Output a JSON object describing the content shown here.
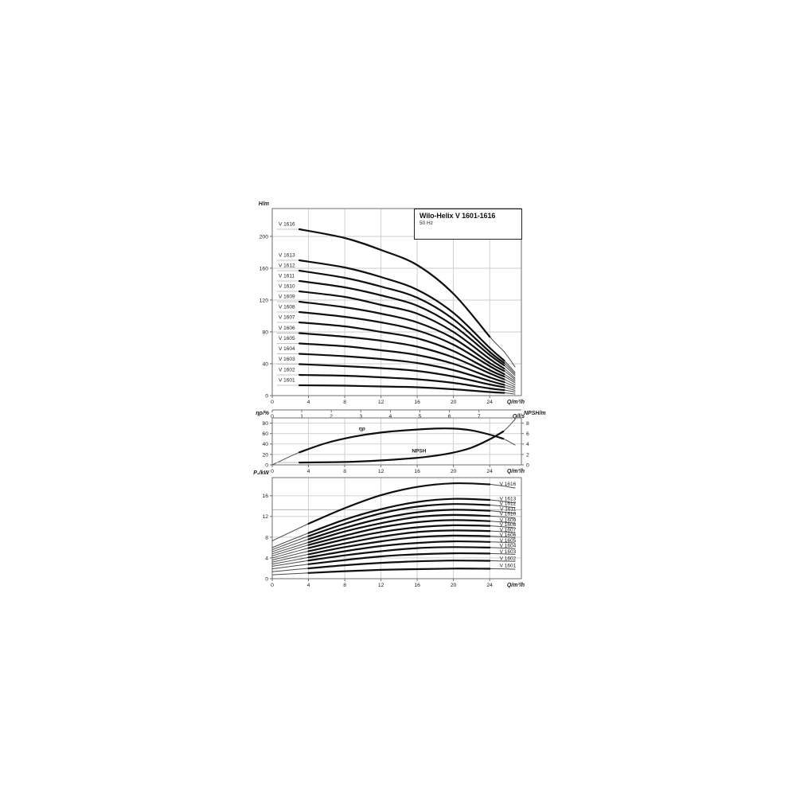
{
  "title_box": {
    "title": "Wilo-Helix V 1601-1616",
    "subtitle": "50 Hz"
  },
  "colors": {
    "curve": "#0f0f0f",
    "curve_thin": "#4a4a4a",
    "lead": "#c4c4c4",
    "grid": "#cbcbcb",
    "frame": "#6e6e6e",
    "ref_line": "#b4b4b4",
    "text": "#1a1a1a"
  },
  "chart_data": [
    {
      "id": "head-chart",
      "type": "line",
      "title": "Wilo-Helix V 1601-1616, 50 Hz",
      "xlabel": "Q/m³/h",
      "ylabel": "H/m",
      "xlim": [
        0,
        27.5
      ],
      "ylim": [
        0,
        235
      ],
      "x_ticks": [
        0,
        4,
        8,
        12,
        16,
        20,
        24
      ],
      "y_ticks": [
        0,
        40,
        80,
        120,
        160,
        200
      ],
      "grid": true,
      "x2": {
        "label": "Q/l/s",
        "ticks": [
          0,
          1,
          2,
          3,
          4,
          5,
          6,
          7
        ],
        "m3h_per_unit": 3.26
      },
      "x": [
        3,
        8,
        12,
        16,
        20,
        24,
        25.6,
        26.8
      ],
      "series": [
        {
          "name": "V 1616",
          "y": [
            209,
            198,
            183,
            164,
            128,
            74,
            55,
            36
          ],
          "axis": "y",
          "thick": [
            3,
            24
          ],
          "lead": 0.5
        },
        {
          "name": "V 1613",
          "y": [
            170,
            161,
            149,
            133,
            104,
            60,
            44,
            29
          ],
          "axis": "y",
          "thick": [
            3,
            25.6
          ],
          "lead": 0.5
        },
        {
          "name": "V 1612",
          "y": [
            157,
            148,
            137,
            123,
            96,
            55,
            41,
            27
          ],
          "axis": "y",
          "thick": [
            3,
            25.6
          ],
          "lead": 0.5
        },
        {
          "name": "V 1611",
          "y": [
            144,
            136,
            126,
            113,
            88,
            51,
            38,
            25
          ],
          "axis": "y",
          "thick": [
            3,
            25.6
          ],
          "lead": 0.5
        },
        {
          "name": "V 1610",
          "y": [
            131,
            124,
            114,
            103,
            80,
            46,
            34,
            22
          ],
          "axis": "y",
          "thick": [
            3,
            25.6
          ],
          "lead": 0.5
        },
        {
          "name": "V 1609",
          "y": [
            118,
            111,
            103,
            92,
            72,
            41,
            31,
            20
          ],
          "axis": "y",
          "thick": [
            3,
            25.6
          ],
          "lead": 0.5
        },
        {
          "name": "V 1608",
          "y": [
            105,
            99,
            92,
            82,
            64,
            37,
            27,
            18
          ],
          "axis": "y",
          "thick": [
            3,
            25.6
          ],
          "lead": 0.5
        },
        {
          "name": "V 1607",
          "y": [
            92,
            87,
            80,
            72,
            56,
            32,
            24,
            16
          ],
          "axis": "y",
          "thick": [
            3,
            25.6
          ],
          "lead": 0.5
        },
        {
          "name": "V 1606",
          "y": [
            78.5,
            74,
            69,
            61.5,
            48,
            28,
            20.5,
            13.5
          ],
          "axis": "y",
          "thick": [
            3,
            25.6
          ],
          "lead": 0.5
        },
        {
          "name": "V 1605",
          "y": [
            65.5,
            62,
            57,
            51,
            40,
            23,
            17,
            11
          ],
          "axis": "y",
          "thick": [
            3,
            25.6
          ],
          "lead": 0.5
        },
        {
          "name": "V 1604",
          "y": [
            52.5,
            49.5,
            46,
            41,
            32,
            18.5,
            13.5,
            9
          ],
          "axis": "y",
          "thick": [
            3,
            25.6
          ],
          "lead": 0.5
        },
        {
          "name": "V 1603",
          "y": [
            39.5,
            37,
            34.5,
            31,
            24,
            14,
            10.5,
            6.5
          ],
          "axis": "y",
          "thick": [
            3,
            25.6
          ],
          "lead": 0.5
        },
        {
          "name": "V 1602",
          "y": [
            26,
            25,
            23,
            20.5,
            16,
            9,
            7,
            4.5
          ],
          "axis": "y",
          "thick": [
            3,
            25.6
          ],
          "lead": 0.5
        },
        {
          "name": "V 1601",
          "y": [
            13,
            12.5,
            11.5,
            10.5,
            8,
            4.5,
            3.5,
            2
          ],
          "axis": "y",
          "thick": [
            3,
            25.6
          ],
          "lead": 0.5
        }
      ],
      "annotations": [
        {
          "text": "V 1616",
          "q": 0.7,
          "v": 213.5,
          "anchor": "start"
        },
        {
          "text": "V 1613",
          "q": 0.7,
          "v": 174.5,
          "anchor": "start"
        },
        {
          "text": "V 1612",
          "q": 0.7,
          "v": 161.5,
          "anchor": "start"
        },
        {
          "text": "V 1611",
          "q": 0.7,
          "v": 148.5,
          "anchor": "start"
        },
        {
          "text": "V 1610",
          "q": 0.7,
          "v": 135.5,
          "anchor": "start"
        },
        {
          "text": "V 1609",
          "q": 0.7,
          "v": 122.5,
          "anchor": "start"
        },
        {
          "text": "V 1608",
          "q": 0.7,
          "v": 109.5,
          "anchor": "start"
        },
        {
          "text": "V 1607",
          "q": 0.7,
          "v": 96.5,
          "anchor": "start"
        },
        {
          "text": "V 1606",
          "q": 0.7,
          "v": 83,
          "anchor": "start"
        },
        {
          "text": "V 1605",
          "q": 0.7,
          "v": 70,
          "anchor": "start"
        },
        {
          "text": "V 1604",
          "q": 0.7,
          "v": 57,
          "anchor": "start"
        },
        {
          "text": "V 1603",
          "q": 0.7,
          "v": 44,
          "anchor": "start"
        },
        {
          "text": "V 1602",
          "q": 0.7,
          "v": 30.5,
          "anchor": "start"
        },
        {
          "text": "V 1601",
          "q": 0.7,
          "v": 17.5,
          "anchor": "start"
        }
      ]
    },
    {
      "id": "efficiency-npsh-chart",
      "type": "line",
      "xlabel": "Q/m³/h",
      "ylabel": "ηp/%",
      "y2label": "NPSH/m",
      "xlim": [
        0,
        27.5
      ],
      "ylim": [
        0,
        90
      ],
      "y2lim": [
        0,
        9
      ],
      "x_ticks": [
        0,
        4,
        8,
        12,
        16,
        20,
        24
      ],
      "y_ticks": [
        0,
        20,
        40,
        60,
        80
      ],
      "y2_ticks": [
        0,
        2,
        4,
        6,
        8
      ],
      "grid": true,
      "series": [
        {
          "name": "ηp",
          "x": [
            0,
            3,
            6,
            9,
            12,
            15,
            18,
            20,
            22,
            24,
            25.5,
            26.8
          ],
          "y": [
            0,
            24,
            42,
            54,
            62,
            66.5,
            69.5,
            69.5,
            66,
            58,
            50,
            38
          ],
          "axis": "y",
          "thick": [
            3,
            25.5
          ],
          "lead": null
        },
        {
          "name": "NPSH",
          "x": [
            3,
            8,
            12,
            16,
            18,
            20,
            22,
            24,
            25.5,
            26.8
          ],
          "y": [
            0.45,
            0.55,
            0.85,
            1.35,
            1.75,
            2.35,
            3.3,
            4.9,
            6.4,
            8.7
          ],
          "axis": "y2",
          "thick": [
            3,
            25.5
          ],
          "lead": 0.5
        }
      ],
      "annotations": [
        {
          "text": "ηp",
          "q": 9.9,
          "v": 66,
          "axis": "y",
          "anchor": "middle",
          "bold": true,
          "italic": true
        },
        {
          "text": "NPSH",
          "q": 16.2,
          "v": 2.35,
          "axis": "y2",
          "anchor": "middle",
          "bold": true
        }
      ]
    },
    {
      "id": "power-chart",
      "type": "line",
      "xlabel": "Q/m³/h",
      "ylabel": "P₂/kW",
      "xlim": [
        0,
        27.5
      ],
      "ylim": [
        0,
        19.5
      ],
      "x_ticks": [
        0,
        4,
        8,
        12,
        16,
        20,
        24
      ],
      "y_ticks": [
        0,
        4,
        8,
        12,
        16
      ],
      "grid": true,
      "ref_lines": [
        13.3
      ],
      "x": [
        0,
        4,
        8,
        12,
        16,
        20,
        24,
        26.8
      ],
      "series": [
        {
          "name": "V 1616",
          "y": [
            7.3,
            10.6,
            13.6,
            16.1,
            17.7,
            18.4,
            18.2,
            17.5
          ],
          "axis": "y",
          "thick": [
            4,
            24
          ],
          "lead": null
        },
        {
          "name": "V 1613",
          "y": [
            6.0,
            8.8,
            11.4,
            13.4,
            14.8,
            15.4,
            15.2,
            14.6
          ],
          "axis": "y",
          "thick": [
            4,
            24
          ],
          "lead": null
        },
        {
          "name": "V 1612",
          "y": [
            5.6,
            8.2,
            10.6,
            12.6,
            13.9,
            14.4,
            14.2,
            13.7
          ],
          "axis": "y",
          "thick": [
            4,
            24
          ],
          "lead": null
        },
        {
          "name": "V 1611",
          "y": [
            5.2,
            7.6,
            9.8,
            11.6,
            12.8,
            13.3,
            13.1,
            12.6
          ],
          "axis": "y",
          "thick": [
            4,
            24
          ],
          "lead": null
        },
        {
          "name": "V 1610",
          "y": [
            4.8,
            7.0,
            9.1,
            10.7,
            11.9,
            12.3,
            12.1,
            11.7
          ],
          "axis": "y",
          "thick": [
            4,
            24
          ],
          "lead": null
        },
        {
          "name": "V 1609",
          "y": [
            4.4,
            6.5,
            8.3,
            9.9,
            10.9,
            11.3,
            11.1,
            10.7
          ],
          "axis": "y",
          "thick": [
            4,
            24
          ],
          "lead": null
        },
        {
          "name": "V 1608",
          "y": [
            4.0,
            5.9,
            7.6,
            9.0,
            9.9,
            10.3,
            10.2,
            9.8
          ],
          "axis": "y",
          "thick": [
            4,
            24
          ],
          "lead": null
        },
        {
          "name": "V 1607",
          "y": [
            3.6,
            5.3,
            6.8,
            8.1,
            9.0,
            9.3,
            9.2,
            8.9
          ],
          "axis": "y",
          "thick": [
            4,
            24
          ],
          "lead": null
        },
        {
          "name": "V 1606",
          "y": [
            3.2,
            4.7,
            6.1,
            7.2,
            8.0,
            8.3,
            8.2,
            7.9
          ],
          "axis": "y",
          "thick": [
            4,
            24
          ],
          "lead": null
        },
        {
          "name": "V 1605",
          "y": [
            2.8,
            4.1,
            5.3,
            6.3,
            6.9,
            7.2,
            7.1,
            6.9
          ],
          "axis": "y",
          "thick": [
            4,
            24
          ],
          "lead": null
        },
        {
          "name": "V 1604",
          "y": [
            2.4,
            3.5,
            4.5,
            5.3,
            5.9,
            6.1,
            6.0,
            5.8
          ],
          "axis": "y",
          "thick": [
            4,
            24
          ],
          "lead": null
        },
        {
          "name": "V 1603",
          "y": [
            1.9,
            2.8,
            3.6,
            4.3,
            4.7,
            4.9,
            4.85,
            4.7
          ],
          "axis": "y",
          "thick": [
            4,
            24
          ],
          "lead": null
        },
        {
          "name": "V 1602",
          "y": [
            1.35,
            2.0,
            2.6,
            3.05,
            3.35,
            3.5,
            3.45,
            3.35
          ],
          "axis": "y",
          "thick": [
            4,
            24
          ],
          "lead": null
        },
        {
          "name": "V 1601",
          "y": [
            0.75,
            1.1,
            1.45,
            1.7,
            1.85,
            1.95,
            1.92,
            1.85
          ],
          "axis": "y",
          "thick": [
            4,
            24
          ],
          "lead": null
        }
      ],
      "annotations": [
        {
          "text": "V 1616",
          "q": 26.9,
          "v": 18.0,
          "anchor": "end"
        },
        {
          "text": "V 1613",
          "q": 26.9,
          "v": 15.1,
          "anchor": "end"
        },
        {
          "text": "V 1612",
          "q": 26.9,
          "v": 14.2,
          "anchor": "end"
        },
        {
          "text": "V 1611",
          "q": 26.9,
          "v": 13.1,
          "anchor": "end"
        },
        {
          "text": "V 1610",
          "q": 26.9,
          "v": 12.2,
          "anchor": "end"
        },
        {
          "text": "V 1609",
          "q": 26.9,
          "v": 11.0,
          "anchor": "end"
        },
        {
          "text": "V 1608",
          "q": 26.9,
          "v": 10.1,
          "anchor": "end"
        },
        {
          "text": "V 1607",
          "q": 26.9,
          "v": 9.15,
          "anchor": "end"
        },
        {
          "text": "V 1606",
          "q": 26.9,
          "v": 8.1,
          "anchor": "end"
        },
        {
          "text": "V 1605",
          "q": 26.9,
          "v": 7.1,
          "anchor": "end"
        },
        {
          "text": "V 1604",
          "q": 26.9,
          "v": 6.05,
          "anchor": "end"
        },
        {
          "text": "V 1603",
          "q": 26.9,
          "v": 4.9,
          "anchor": "end"
        },
        {
          "text": "V 1602",
          "q": 26.9,
          "v": 3.6,
          "anchor": "end"
        },
        {
          "text": "V 1601",
          "q": 26.9,
          "v": 2.2,
          "anchor": "end"
        }
      ]
    }
  ]
}
